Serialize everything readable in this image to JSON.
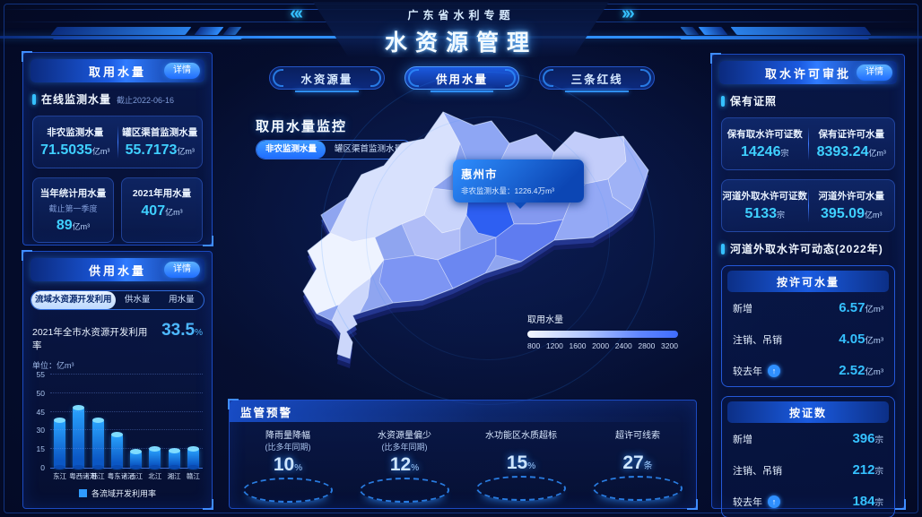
{
  "page": {
    "accent": "#2f8fff",
    "bg": "#040b28"
  },
  "header": {
    "subtitle": "广东省水利专题",
    "title": "水资源管理",
    "left_arrows": "«‹",
    "right_arrows": "›»"
  },
  "left": {
    "intake_panel": {
      "title": "取用水量",
      "detail_label": "详情",
      "section_label": "在线监测水量",
      "section_asof": "截止2022-06-16",
      "stats": [
        {
          "label": "非农监测水量",
          "value": "71.5035",
          "unit": "亿m³"
        },
        {
          "label": "罐区渠首监测水量",
          "value": "55.7173",
          "unit": "亿m³"
        }
      ],
      "cards": [
        {
          "label": "当年统计用水量",
          "sub": "截止第一季度",
          "value": "89",
          "unit": "亿m³"
        },
        {
          "label": "2021年用水量",
          "sub": "",
          "value": "407",
          "unit": "亿m³"
        }
      ]
    },
    "supply_panel": {
      "title": "供用水量",
      "detail_label": "详情",
      "tabs": [
        {
          "label": "流域水资源开发利用"
        },
        {
          "label": "供水量"
        },
        {
          "label": "用水量"
        }
      ],
      "rate_label": "2021年全市水资源开发利用率",
      "rate_value": "33.5",
      "rate_unit": "%",
      "unit_note": "单位：亿m³"
    }
  },
  "chart_data": {
    "type": "bar",
    "title": "各流域开发利用率",
    "categories": [
      "东江",
      "粤西诸河",
      "韩江",
      "粤东诸河",
      "西江",
      "北江",
      "湘江",
      "赣江"
    ],
    "values": [
      38,
      46,
      38,
      27,
      13,
      15,
      14,
      15
    ],
    "y_ticks": [
      0,
      15,
      30,
      45,
      50,
      55
    ],
    "ylabel": "单位：亿m³",
    "legend": "各流域开发利用率",
    "grid": "dotted",
    "bar_color_top": "#2aa4ff",
    "bar_color_bottom": "#0b57c4"
  },
  "center": {
    "tabs": [
      {
        "label": "水资源量"
      },
      {
        "label": "供用水量"
      },
      {
        "label": "三条红线"
      }
    ],
    "monitor_title": "取用水量监控",
    "monitor_toggle": [
      {
        "label": "非农监测水量"
      },
      {
        "label": "罐区渠首监测水量"
      }
    ],
    "tooltip": {
      "city": "惠州市",
      "metric": "非农监测水量：",
      "value": "1226.4万m³"
    },
    "scale": {
      "label": "取用水量",
      "ticks": [
        "800",
        "1200",
        "1600",
        "2000",
        "2400",
        "2800",
        "3200"
      ],
      "gradient_from": "#f4f8ff",
      "gradient_to": "#3f6dff"
    }
  },
  "alerts": {
    "title": "监管预警",
    "items": [
      {
        "label1": "降雨量降幅",
        "label2": "(比多年同期)",
        "value": "10",
        "unit": "%"
      },
      {
        "label1": "水资源量偏少",
        "label2": "(比多年同期)",
        "value": "12",
        "unit": "%"
      },
      {
        "label1": "水功能区水质超标",
        "label2": "",
        "value": "15",
        "unit": "%"
      },
      {
        "label1": "超许可线索",
        "label2": "",
        "value": "27",
        "unit": "条"
      }
    ]
  },
  "right": {
    "title": "取水许可审批",
    "detail_label": "详情",
    "section1": "保有证照",
    "card1": [
      {
        "label": "保有取水许可证数",
        "value": "14246",
        "unit": "宗"
      },
      {
        "label": "保有证许可水量",
        "value": "8393.24",
        "unit": "亿m³"
      }
    ],
    "card2": [
      {
        "label": "河道外取水许可证数",
        "value": "5133",
        "unit": "宗"
      },
      {
        "label": "河道外许可水量",
        "value": "395.09",
        "unit": "亿m³"
      }
    ],
    "section2": "河道外取水许可动态(2022年)",
    "by_volume": {
      "title": "按许可水量",
      "rows": [
        {
          "label": "新增",
          "value": "6.57",
          "unit": "亿m³"
        },
        {
          "label": "注销、吊销",
          "value": "4.05",
          "unit": "亿m³"
        },
        {
          "label": "较去年",
          "value": "2.52",
          "unit": "亿m³"
        }
      ]
    },
    "by_count": {
      "title": "按证数",
      "rows": [
        {
          "label": "新增",
          "value": "396",
          "unit": "宗"
        },
        {
          "label": "注销、吊销",
          "value": "212",
          "unit": "宗"
        },
        {
          "label": "较去年",
          "value": "184",
          "unit": "宗"
        }
      ]
    }
  }
}
